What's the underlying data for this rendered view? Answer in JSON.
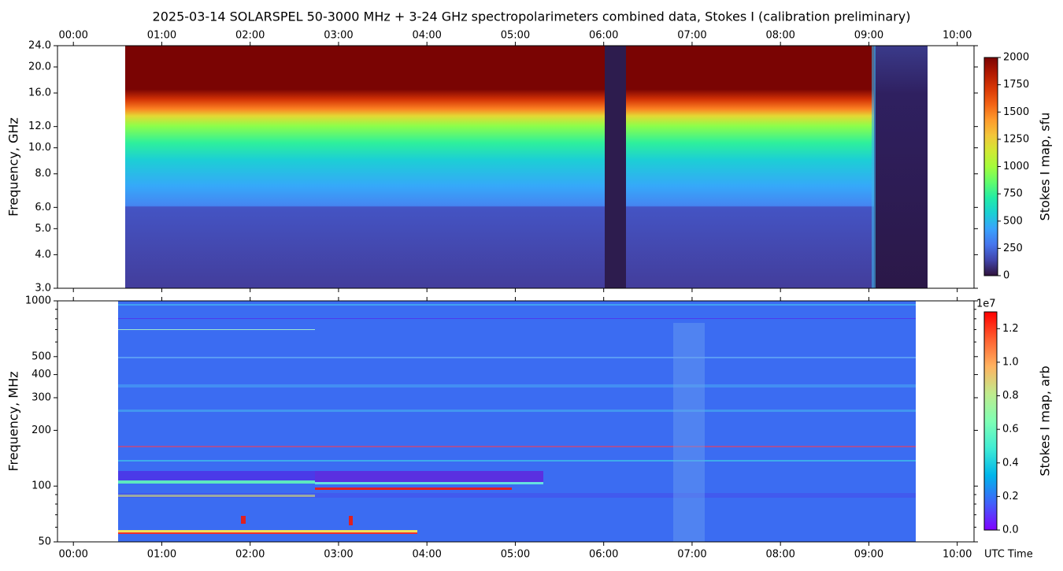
{
  "chart_data": [
    {
      "type": "heatmap",
      "title": "2025-03-14  SOLARSPEL  50-3000 MHz  +  3-24 GHz  spectropolarimeters combined data,  Stokes I  (calibration preliminary)",
      "ylabel": "Frequency, GHz",
      "xlim": [
        -0.18,
        10.19
      ],
      "xticks": [
        {
          "value": 0,
          "label": "00:00"
        },
        {
          "value": 1,
          "label": "01:00"
        },
        {
          "value": 2,
          "label": "02:00"
        },
        {
          "value": 3,
          "label": "03:00"
        },
        {
          "value": 4,
          "label": "04:00"
        },
        {
          "value": 5,
          "label": "05:00"
        },
        {
          "value": 6,
          "label": "06:00"
        },
        {
          "value": 7,
          "label": "07:00"
        },
        {
          "value": 8,
          "label": "08:00"
        },
        {
          "value": 9,
          "label": "09:00"
        },
        {
          "value": 10,
          "label": "10:00"
        }
      ],
      "xtick_labels_position": "top",
      "ylim": [
        3,
        24
      ],
      "yscale": "log",
      "yticks": [
        {
          "value": 3,
          "label": "3.0"
        },
        {
          "value": 4,
          "label": "4.0"
        },
        {
          "value": 5,
          "label": "5.0"
        },
        {
          "value": 6,
          "label": "6.0"
        },
        {
          "value": 8,
          "label": "8.0"
        },
        {
          "value": 10,
          "label": "10.0"
        },
        {
          "value": 12,
          "label": "12.0"
        },
        {
          "value": 16,
          "label": "16.0"
        },
        {
          "value": 20,
          "label": "20.0"
        },
        {
          "value": 24,
          "label": "24.0"
        }
      ],
      "colormap": "turbo",
      "colorbar_label": "Stokes I map, sfu",
      "clim": [
        0,
        2000
      ],
      "cticks": [
        0,
        250,
        500,
        750,
        1000,
        1250,
        1500,
        1750,
        2000
      ]
    },
    {
      "type": "heatmap",
      "ylabel": "Frequency, MHz",
      "xlabel": "UTC Time",
      "xlim": [
        -0.18,
        10.19
      ],
      "xticks": [
        {
          "value": 0,
          "label": "00:00"
        },
        {
          "value": 1,
          "label": "01:00"
        },
        {
          "value": 2,
          "label": "02:00"
        },
        {
          "value": 3,
          "label": "03:00"
        },
        {
          "value": 4,
          "label": "04:00"
        },
        {
          "value": 5,
          "label": "05:00"
        },
        {
          "value": 6,
          "label": "06:00"
        },
        {
          "value": 7,
          "label": "07:00"
        },
        {
          "value": 8,
          "label": "08:00"
        },
        {
          "value": 9,
          "label": "09:00"
        },
        {
          "value": 10,
          "label": "10:00"
        }
      ],
      "xtick_labels_position": "bottom",
      "ylim": [
        50,
        1000
      ],
      "yscale": "log",
      "yticks": [
        50,
        100,
        200,
        300,
        400,
        500,
        1000
      ],
      "yminor_ticks": [
        60,
        70,
        80,
        90,
        600,
        700,
        800,
        900
      ],
      "colormap": "rainbow",
      "colorbar_label": "Stokes I map, arb",
      "colorbar_offset": "1e7",
      "clim": [
        0,
        13000000
      ],
      "cticks": [
        {
          "value": 0,
          "label": "0.0"
        },
        {
          "value": 2000000,
          "label": "0.2"
        },
        {
          "value": 4000000,
          "label": "0.4"
        },
        {
          "value": 6000000,
          "label": "0.6"
        },
        {
          "value": 8000000,
          "label": "0.8"
        },
        {
          "value": 10000000,
          "label": "1.0"
        },
        {
          "value": 12000000,
          "label": "1.2"
        }
      ]
    }
  ]
}
